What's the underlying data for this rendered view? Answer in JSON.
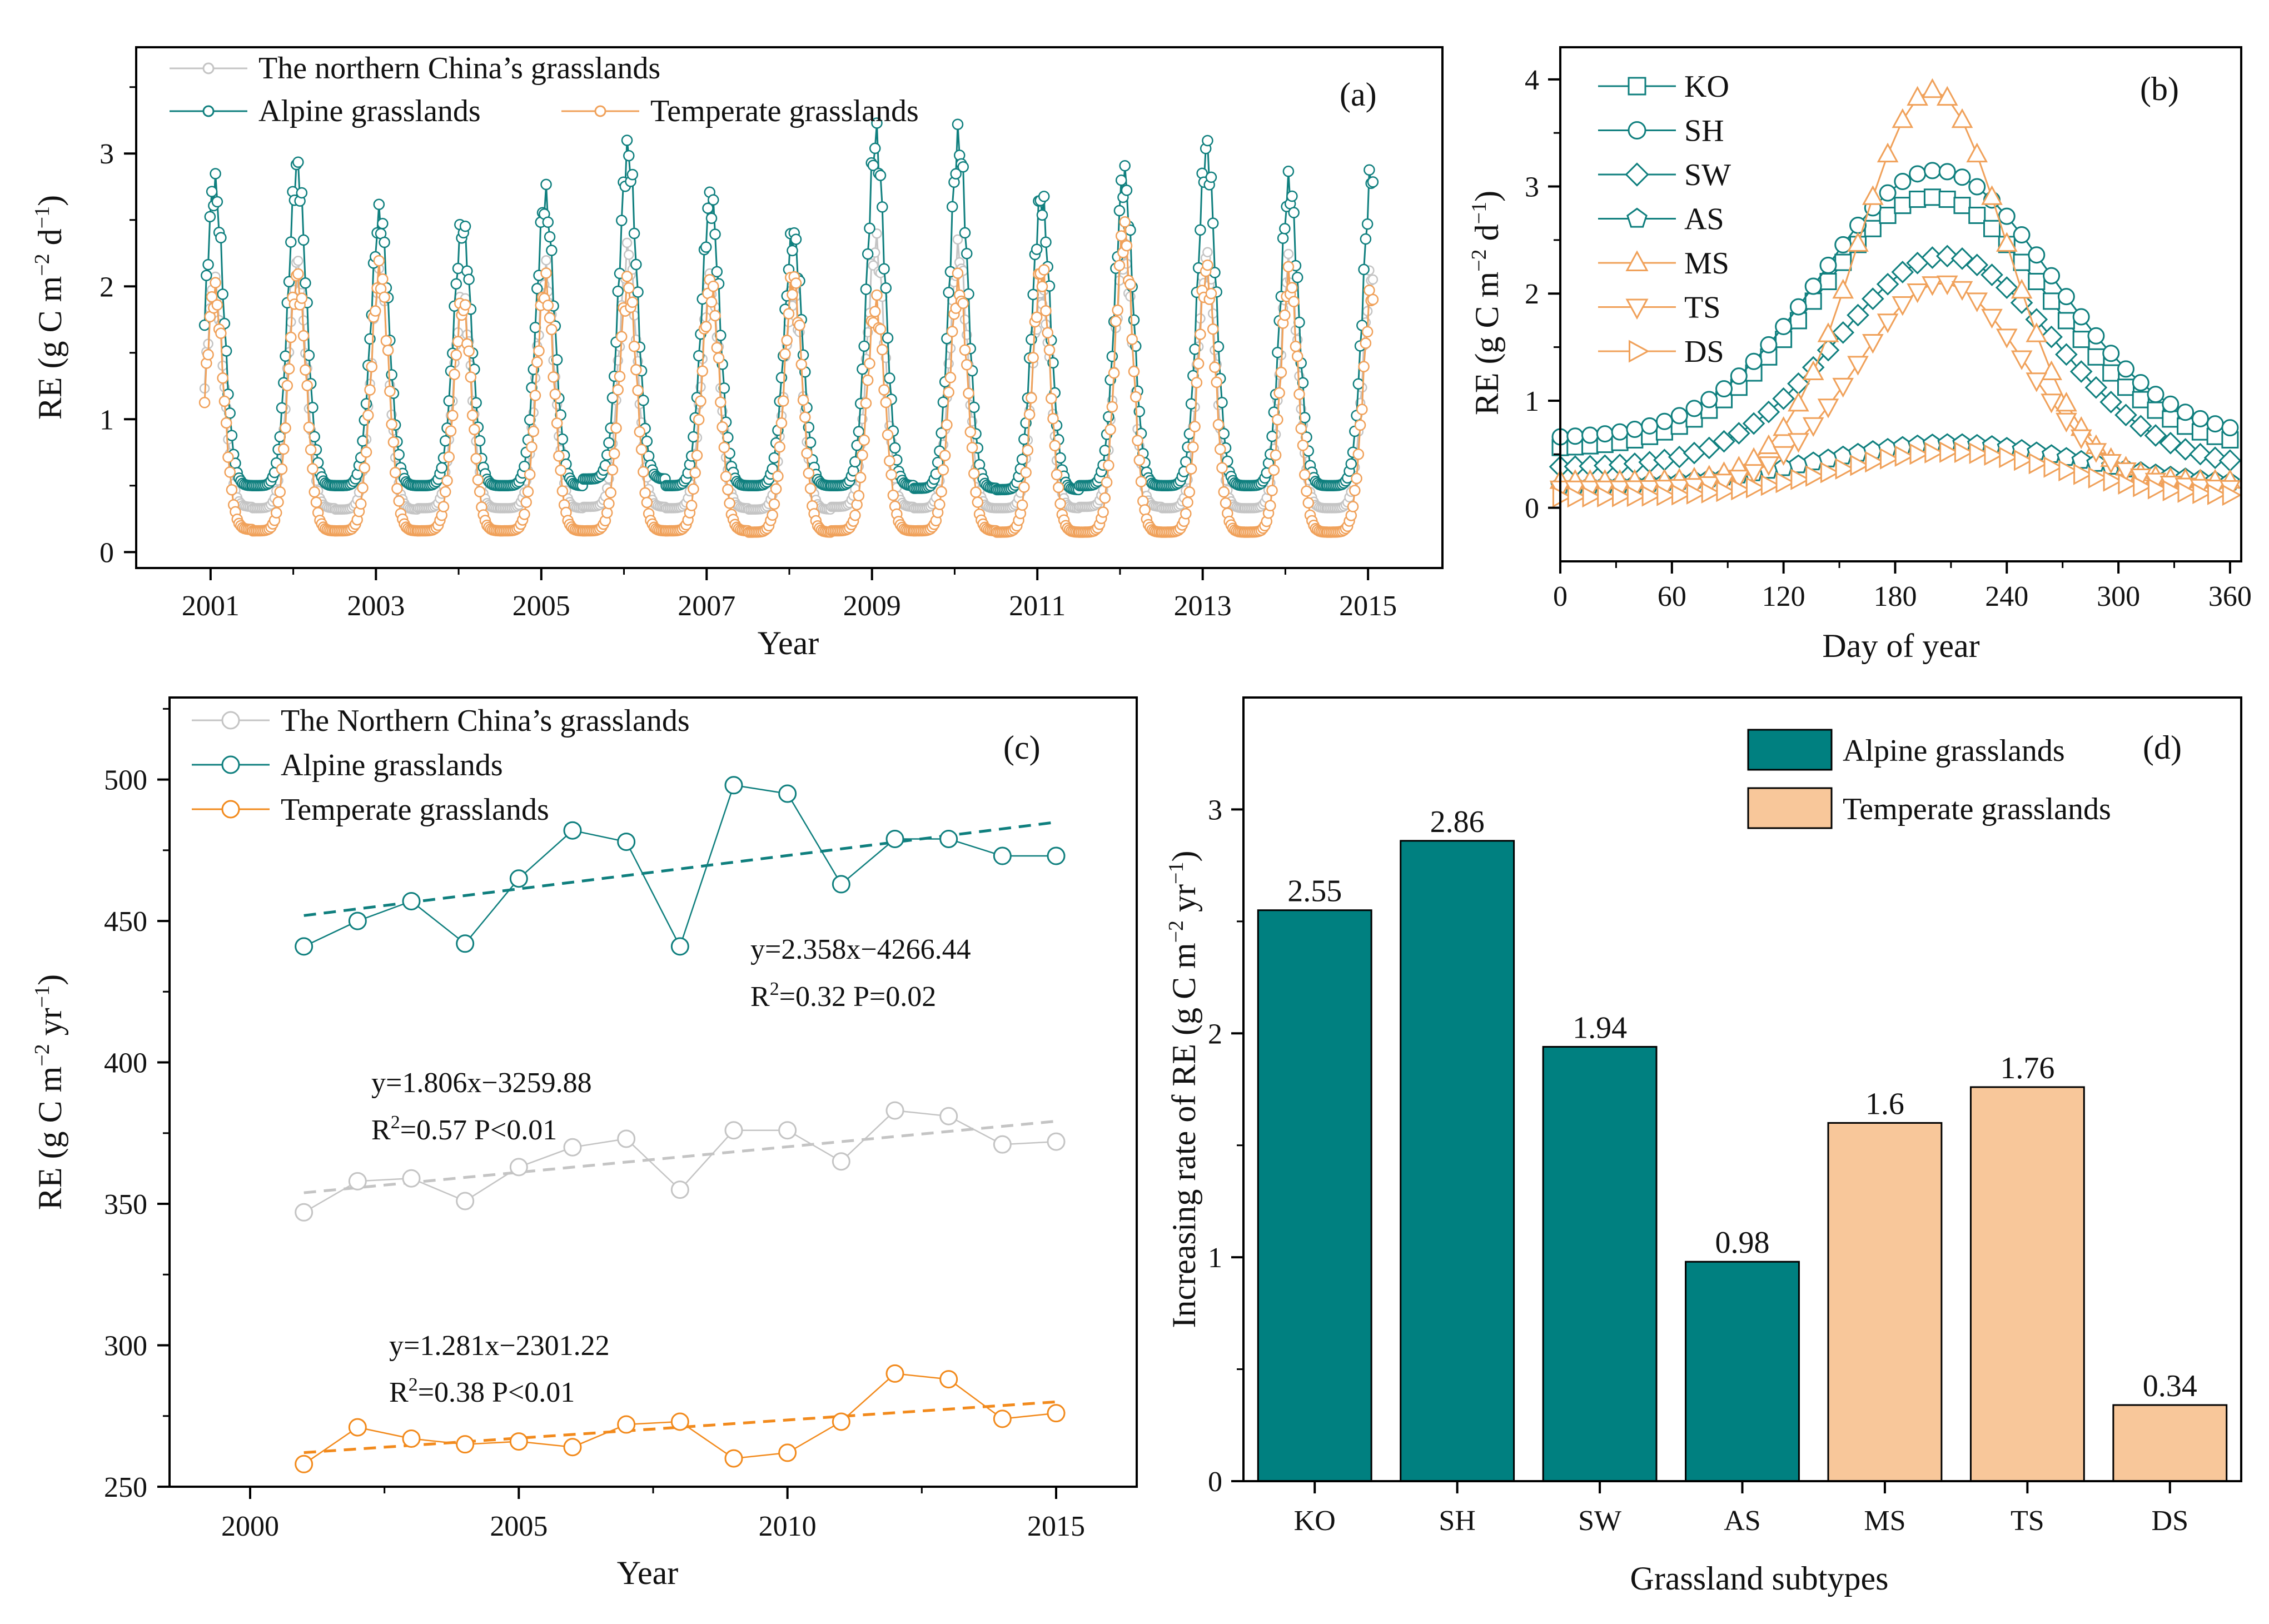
{
  "colors": {
    "alpine": "#0f7f7e",
    "temperate": "#f0a15a",
    "northern": "#c4c4c4",
    "temperate_line": "#f28a1c",
    "bar_alpine": "#008080",
    "bar_temperate": "#f8c79a",
    "axis": "#000000"
  },
  "chart_data": [
    {
      "panel": "(a)",
      "type": "line",
      "xlabel": "Year",
      "ylabel": "RE (g C m−2 d−1)",
      "ylabel_parts": {
        "pre": "RE (g C m",
        "sup1": "−2",
        "mid": " d",
        "sup2": "−1",
        "post": ")"
      },
      "x_ticks": [
        "2001",
        "2003",
        "2005",
        "2007",
        "2009",
        "2011",
        "2013",
        "2015"
      ],
      "y_ticks": [
        "0",
        "1",
        "2",
        "3"
      ],
      "xlim": [
        2000.1,
        2015.9
      ],
      "ylim": [
        -0.12,
        3.8
      ],
      "legend_placement": "top-left",
      "years": [
        2001,
        2002,
        2003,
        2004,
        2005,
        2006,
        2007,
        2008,
        2009,
        2010,
        2011,
        2012,
        2013,
        2014,
        2015
      ],
      "series": [
        {
          "name": "The northern China’s grasslands",
          "key": "northern",
          "min": [
            0.34,
            0.33,
            0.32,
            0.33,
            0.33,
            0.34,
            0.33,
            0.32,
            0.34,
            0.33,
            0.33,
            0.34,
            0.33,
            0.33,
            0.33
          ],
          "peak": [
            2.0,
            2.15,
            2.05,
            1.9,
            2.1,
            2.25,
            2.05,
            1.95,
            2.3,
            2.25,
            1.95,
            2.25,
            2.2,
            2.15,
            2.1
          ]
        },
        {
          "name": "Alpine grasslands",
          "key": "alpine",
          "min": [
            0.5,
            0.5,
            0.5,
            0.5,
            0.5,
            0.55,
            0.5,
            0.5,
            0.5,
            0.48,
            0.47,
            0.5,
            0.5,
            0.5,
            0.5
          ],
          "peak": [
            2.75,
            2.88,
            2.52,
            2.44,
            2.65,
            3.0,
            2.65,
            2.38,
            3.1,
            3.08,
            2.65,
            2.82,
            3.02,
            2.75,
            2.85
          ]
        },
        {
          "name": "Temperate grasslands",
          "key": "temperate",
          "min": [
            0.17,
            0.16,
            0.16,
            0.16,
            0.16,
            0.16,
            0.16,
            0.15,
            0.16,
            0.16,
            0.15,
            0.15,
            0.15,
            0.15,
            0.15
          ],
          "peak": [
            1.95,
            2.05,
            2.1,
            1.85,
            2.0,
            2.0,
            2.0,
            2.05,
            1.85,
            2.0,
            2.1,
            2.4,
            2.1,
            2.05,
            1.95
          ]
        }
      ]
    },
    {
      "panel": "(b)",
      "type": "line",
      "xlabel": "Day of year",
      "ylabel": "RE (g C m−2 d−1)",
      "ylabel_parts": {
        "pre": "RE (g C m",
        "sup1": "−2",
        "mid": " d",
        "sup2": "−1",
        "post": ")"
      },
      "x_ticks": [
        "0",
        "60",
        "120",
        "180",
        "240",
        "300",
        "360"
      ],
      "x_tick_values": [
        0,
        60,
        120,
        180,
        240,
        300,
        360
      ],
      "y_ticks": [
        "0",
        "1",
        "2",
        "3",
        "4"
      ],
      "xlim": [
        0,
        366
      ],
      "ylim": [
        -0.5,
        4.3
      ],
      "legend_placement": "top-left",
      "series": [
        {
          "name": "KO",
          "marker": "square",
          "color_key": "alpine",
          "base": 0.55,
          "peak": 2.9,
          "center": 200,
          "width": 62
        },
        {
          "name": "SH",
          "marker": "circle",
          "color_key": "alpine",
          "base": 0.65,
          "peak": 3.15,
          "center": 202,
          "width": 62
        },
        {
          "name": "SW",
          "marker": "diamond",
          "color_key": "alpine",
          "base": 0.38,
          "peak": 2.35,
          "center": 207,
          "width": 58
        },
        {
          "name": "AS",
          "marker": "pentagon",
          "color_key": "alpine",
          "base": 0.2,
          "peak": 0.6,
          "center": 210,
          "width": 70
        },
        {
          "name": "MS",
          "marker": "triangle-up",
          "color_key": "temperate",
          "base": 0.25,
          "peak": 3.9,
          "center": 200,
          "width": 40
        },
        {
          "name": "TS",
          "marker": "triangle-down",
          "color_key": "temperate",
          "base": 0.18,
          "peak": 2.1,
          "center": 205,
          "width": 45
        },
        {
          "name": "DS",
          "marker": "triangle-right",
          "color_key": "temperate",
          "base": 0.1,
          "peak": 0.52,
          "center": 210,
          "width": 60
        }
      ]
    },
    {
      "panel": "(c)",
      "type": "line",
      "xlabel": "Year",
      "ylabel": "RE (g C m−2 yr−1)",
      "ylabel_parts": {
        "pre": "RE (g C m",
        "sup1": "−2",
        "mid": " yr",
        "sup2": "−1",
        "post": ")"
      },
      "x_ticks": [
        "2000",
        "2005",
        "2010",
        "2015"
      ],
      "x_tick_values": [
        2000,
        2005,
        2010,
        2015
      ],
      "y_ticks": [
        "250",
        "300",
        "350",
        "400",
        "450",
        "500"
      ],
      "y_tick_values": [
        250,
        300,
        350,
        400,
        450,
        500
      ],
      "xlim": [
        1998.5,
        2016.5
      ],
      "ylim": [
        250,
        529
      ],
      "legend_placement": "top-left",
      "x": [
        2001,
        2002,
        2003,
        2004,
        2005,
        2006,
        2007,
        2008,
        2009,
        2010,
        2011,
        2012,
        2013,
        2014,
        2015
      ],
      "series": [
        {
          "name": "The Northern China’s grasslands",
          "key": "northern",
          "values": [
            347,
            358,
            359,
            351,
            363,
            370,
            373,
            355,
            376,
            376,
            365,
            383,
            381,
            371,
            372
          ],
          "fit": {
            "slope": 1.806,
            "intercept": -3259.88
          }
        },
        {
          "name": "Alpine grasslands",
          "key": "alpine",
          "values": [
            441,
            450,
            457,
            442,
            465,
            482,
            478,
            441,
            498,
            495,
            463,
            479,
            479,
            473,
            473
          ],
          "fit": {
            "slope": 2.358,
            "intercept": -4266.44
          }
        },
        {
          "name": "Temperate grasslands",
          "key": "temperate_line",
          "values": [
            258,
            271,
            267,
            265,
            266,
            264,
            272,
            273,
            260,
            262,
            273,
            290,
            288,
            274,
            276
          ],
          "fit": {
            "slope": 1.281,
            "intercept": -2301.22
          }
        }
      ],
      "annotations": [
        {
          "key": "alpine",
          "eq": "y=2.358x−4266.44",
          "r2_pre": "R",
          "r2_sup": "2",
          "r2_post": "=0.32 P=0.02"
        },
        {
          "key": "northern",
          "eq": "y=1.806x−3259.88",
          "r2_pre": "R",
          "r2_sup": "2",
          "r2_post": "=0.57 P<0.01"
        },
        {
          "key": "temperate_line",
          "eq": "y=1.281x−2301.22",
          "r2_pre": "R",
          "r2_sup": "2",
          "r2_post": "=0.38 P<0.01"
        }
      ]
    },
    {
      "panel": "(d)",
      "type": "bar",
      "xlabel": "Grassland subtypes",
      "ylabel": "Increasing rate of RE (g C m−2 yr−1)",
      "ylabel_parts": {
        "pre": "Increasing rate of RE (g C m",
        "sup1": "−2",
        "mid": " yr",
        "sup2": "−1",
        "post": ")"
      },
      "categories": [
        "KO",
        "SH",
        "SW",
        "AS",
        "MS",
        "TS",
        "DS"
      ],
      "values": [
        2.55,
        2.86,
        1.94,
        0.98,
        1.6,
        1.76,
        0.34
      ],
      "labels": [
        "2.55",
        "2.86",
        "1.94",
        "0.98",
        "1.6",
        "1.76",
        "0.34"
      ],
      "groups": [
        "alpine",
        "alpine",
        "alpine",
        "alpine",
        "temperate",
        "temperate",
        "temperate"
      ],
      "y_ticks": [
        "0",
        "1",
        "2",
        "3"
      ],
      "ylim": [
        0,
        3.5
      ],
      "legend_placement": "top-right",
      "legend": [
        {
          "name": "Alpine grasslands",
          "key": "bar_alpine"
        },
        {
          "name": "Temperate grasslands",
          "key": "bar_temperate"
        }
      ]
    }
  ]
}
